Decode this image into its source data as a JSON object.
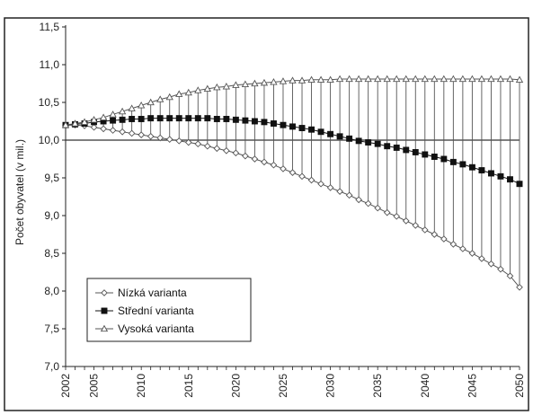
{
  "chart_data": {
    "type": "line",
    "title": "",
    "xlabel": "",
    "ylabel": "Počet obyvatel (v mil.)",
    "xlim": [
      2002,
      2050
    ],
    "ylim": [
      7.0,
      11.5
    ],
    "yticks": [
      "7,0",
      "7,5",
      "8,0",
      "8,5",
      "9,0",
      "9,5",
      "10,0",
      "10,5",
      "11,0",
      "11,5"
    ],
    "xticks": [
      "2002",
      "2005",
      "2010",
      "2015",
      "2020",
      "2025",
      "2030",
      "2035",
      "2040",
      "2045",
      "2050"
    ],
    "reference_line": 10.0,
    "legend_position": "bottom-left",
    "x": [
      2002,
      2003,
      2004,
      2005,
      2006,
      2007,
      2008,
      2009,
      2010,
      2011,
      2012,
      2013,
      2014,
      2015,
      2016,
      2017,
      2018,
      2019,
      2020,
      2021,
      2022,
      2023,
      2024,
      2025,
      2026,
      2027,
      2028,
      2029,
      2030,
      2031,
      2032,
      2033,
      2034,
      2035,
      2036,
      2037,
      2038,
      2039,
      2040,
      2041,
      2042,
      2043,
      2044,
      2045,
      2046,
      2047,
      2048,
      2049,
      2050
    ],
    "series": [
      {
        "name": "Nízká varianta",
        "marker": "open-diamond",
        "color": "#555555",
        "values": [
          10.2,
          10.2,
          10.19,
          10.17,
          10.15,
          10.13,
          10.11,
          10.09,
          10.07,
          10.05,
          10.03,
          10.01,
          9.99,
          9.97,
          9.95,
          9.92,
          9.89,
          9.86,
          9.83,
          9.79,
          9.75,
          9.71,
          9.67,
          9.62,
          9.57,
          9.52,
          9.47,
          9.42,
          9.37,
          9.32,
          9.27,
          9.21,
          9.16,
          9.1,
          9.04,
          8.99,
          8.93,
          8.87,
          8.81,
          8.75,
          8.69,
          8.62,
          8.56,
          8.5,
          8.43,
          8.36,
          8.29,
          8.2,
          8.05
        ]
      },
      {
        "name": "Střední varianta",
        "marker": "filled-square",
        "color": "#111111",
        "values": [
          10.2,
          10.21,
          10.22,
          10.24,
          10.25,
          10.26,
          10.27,
          10.28,
          10.28,
          10.29,
          10.29,
          10.29,
          10.29,
          10.29,
          10.29,
          10.29,
          10.28,
          10.28,
          10.27,
          10.26,
          10.25,
          10.24,
          10.22,
          10.2,
          10.18,
          10.16,
          10.14,
          10.11,
          10.08,
          10.05,
          10.02,
          9.99,
          9.97,
          9.95,
          9.92,
          9.9,
          9.87,
          9.84,
          9.81,
          9.78,
          9.75,
          9.71,
          9.68,
          9.64,
          9.6,
          9.56,
          9.52,
          9.48,
          9.42
        ]
      },
      {
        "name": "Vysoká varianta",
        "marker": "open-triangle",
        "color": "#555555",
        "values": [
          10.2,
          10.22,
          10.24,
          10.27,
          10.3,
          10.34,
          10.38,
          10.42,
          10.46,
          10.5,
          10.54,
          10.57,
          10.61,
          10.63,
          10.66,
          10.68,
          10.7,
          10.71,
          10.73,
          10.74,
          10.75,
          10.76,
          10.77,
          10.78,
          10.79,
          10.79,
          10.8,
          10.8,
          10.8,
          10.81,
          10.81,
          10.81,
          10.81,
          10.81,
          10.81,
          10.81,
          10.81,
          10.81,
          10.81,
          10.81,
          10.81,
          10.81,
          10.81,
          10.81,
          10.81,
          10.81,
          10.81,
          10.81,
          10.8
        ]
      }
    ]
  }
}
